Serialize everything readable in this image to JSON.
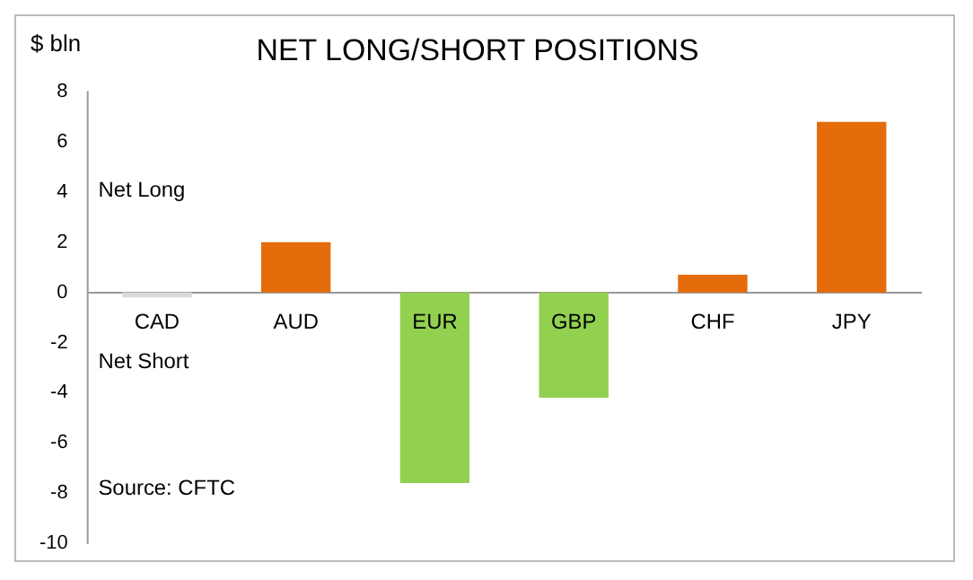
{
  "chart_data": {
    "type": "bar",
    "title": "NET LONG/SHORT POSITIONS",
    "ylabel": "$ bln",
    "categories": [
      "CAD",
      "AUD",
      "EUR",
      "GBP",
      "CHF",
      "JPY"
    ],
    "values": [
      -0.2,
      2.0,
      -7.6,
      -4.2,
      0.7,
      6.8
    ],
    "colors": [
      "#d9d9d9",
      "#e46c0a",
      "#92d050",
      "#92d050",
      "#e46c0a",
      "#e46c0a"
    ],
    "ylim": [
      -10,
      8
    ],
    "yticks": [
      -10,
      -8,
      -6,
      -4,
      -2,
      0,
      2,
      4,
      6,
      8
    ],
    "annotations": [
      "Net Long",
      "Net Short",
      "Source: CFTC"
    ],
    "grid": false,
    "legend": false
  }
}
